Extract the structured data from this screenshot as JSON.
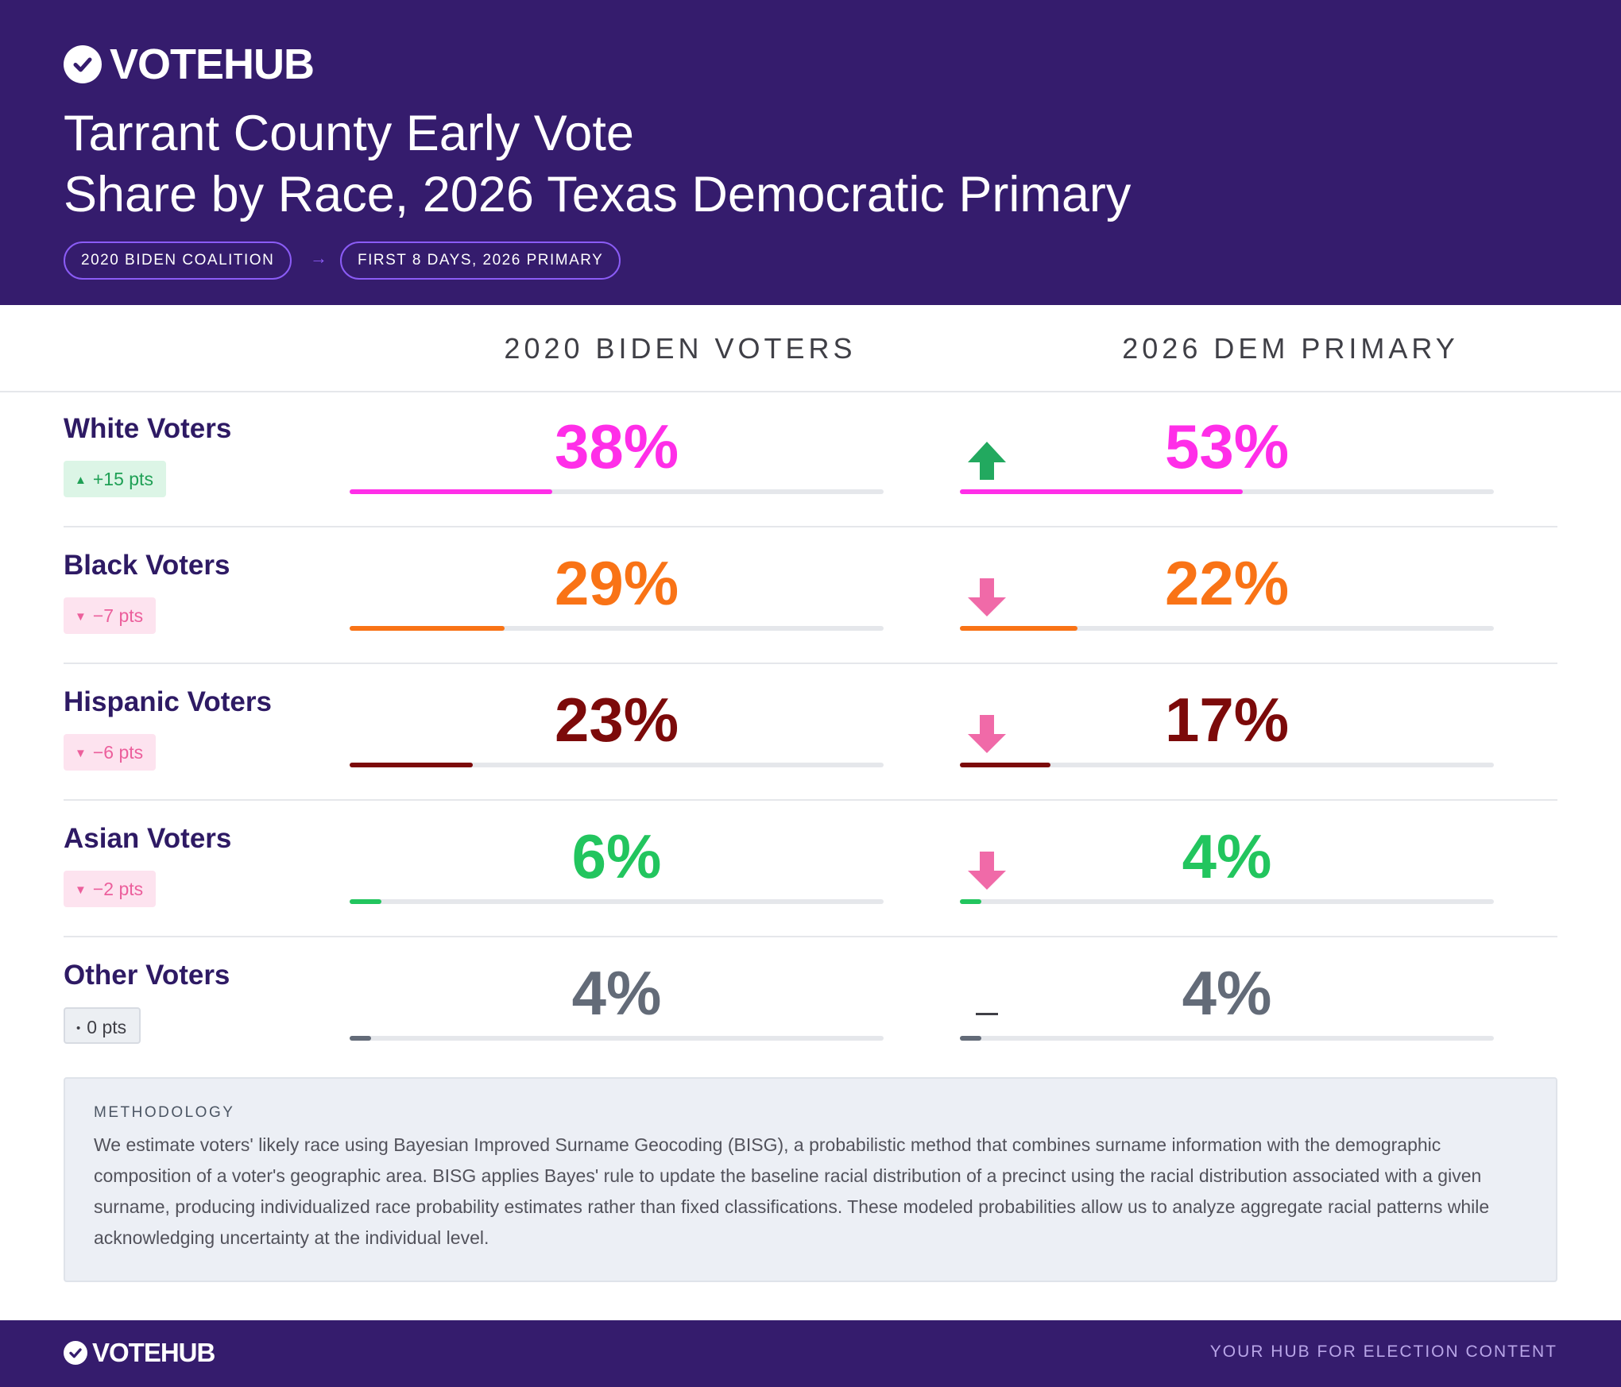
{
  "brand": {
    "name": "VOTEHUB",
    "tagline": "YOUR HUB FOR ELECTION CONTENT"
  },
  "title": {
    "line1": "Tarrant County Early Vote",
    "line2": "Share by Race, 2026 Texas Democratic Primary"
  },
  "pills": {
    "left": "2020 BIDEN COALITION",
    "arrow": "→",
    "right": "FIRST 8 DAYS, 2026 PRIMARY"
  },
  "columns": {
    "left": "2020 BIDEN VOTERS",
    "right": "2026 DEM PRIMARY"
  },
  "colors": {
    "header_bg": "#351c6d",
    "white": "#ff2ee8",
    "black": "#f97316",
    "hispanic": "#7c0a0a",
    "asian": "#22c55e",
    "other": "#636b78",
    "up": "#22a95f",
    "down": "#f06aa8"
  },
  "chart_data": {
    "type": "table",
    "title": "Tarrant County Early Vote Share by Race, 2026 Texas Democratic Primary",
    "series": [
      {
        "name": "2020 BIDEN VOTERS",
        "values": [
          38,
          29,
          23,
          6,
          4
        ]
      },
      {
        "name": "2026 DEM PRIMARY",
        "values": [
          53,
          22,
          17,
          4,
          4
        ]
      }
    ],
    "categories": [
      "White Voters",
      "Black Voters",
      "Hispanic Voters",
      "Asian Voters",
      "Other Voters"
    ],
    "rows": [
      {
        "label": "White Voters",
        "v2020": 38,
        "v2026": 53,
        "v2020_text": "38%",
        "v2026_text": "53%",
        "delta": "+15 pts",
        "direction": "up",
        "color": "#ff2ee8"
      },
      {
        "label": "Black Voters",
        "v2020": 29,
        "v2026": 22,
        "v2020_text": "29%",
        "v2026_text": "22%",
        "delta": "−7 pts",
        "direction": "down",
        "color": "#f97316"
      },
      {
        "label": "Hispanic Voters",
        "v2020": 23,
        "v2026": 17,
        "v2020_text": "23%",
        "v2026_text": "17%",
        "delta": "−6 pts",
        "direction": "down",
        "color": "#7c0a0a"
      },
      {
        "label": "Asian Voters",
        "v2020": 6,
        "v2026": 4,
        "v2020_text": "6%",
        "v2026_text": "4%",
        "delta": "−2 pts",
        "direction": "down",
        "color": "#22c55e"
      },
      {
        "label": "Other Voters",
        "v2020": 4,
        "v2026": 4,
        "v2020_text": "4%",
        "v2026_text": "4%",
        "delta": "0 pts",
        "direction": "flat",
        "color": "#636b78"
      }
    ],
    "ylim": [
      0,
      100
    ]
  },
  "methodology": {
    "heading": "METHODOLOGY",
    "text": "We estimate voters' likely race using Bayesian Improved Surname Geocoding (BISG), a probabilistic method that combines surname information with the demographic composition of a voter's geographic area. BISG applies Bayes' rule to update the baseline racial distribution of a precinct using the racial distribution associated with a given surname, producing individualized race probability estimates rather than fixed classifications. These modeled probabilities allow us to analyze aggregate racial patterns while acknowledging uncertainty at the individual level."
  }
}
